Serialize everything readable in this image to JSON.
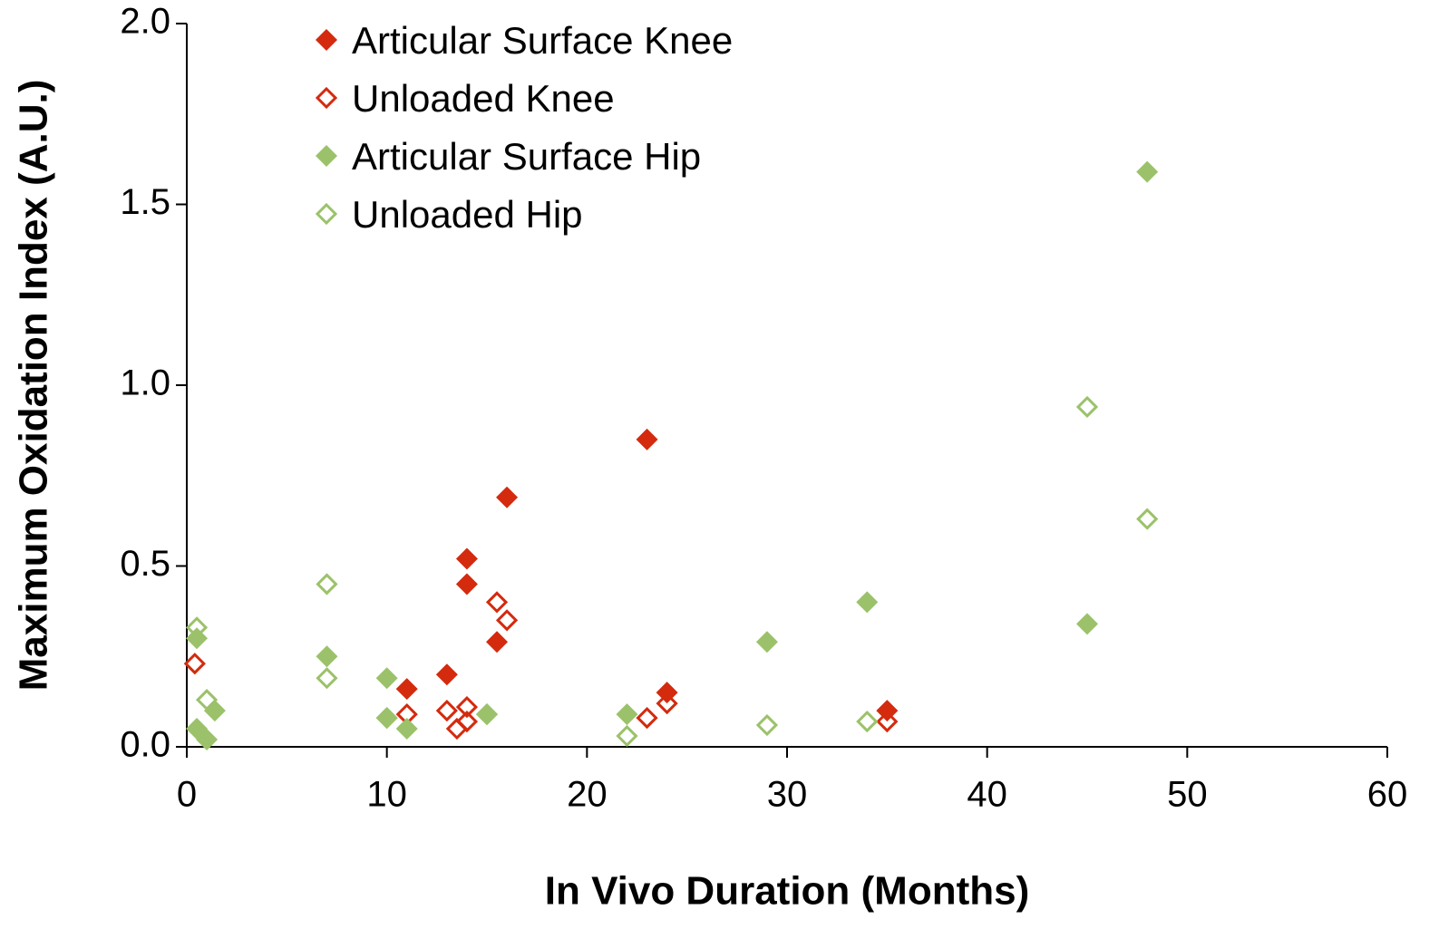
{
  "chart_data": {
    "type": "scatter",
    "xlabel": "In Vivo Duration (Months)",
    "ylabel": "Maximum Oxidation Index (A.U.)",
    "xlim": [
      0,
      60
    ],
    "xticks": [
      0,
      10,
      20,
      30,
      40,
      50,
      60
    ],
    "ylim": [
      0,
      2
    ],
    "yticks": [
      {
        "value": 0,
        "label": "0.0"
      },
      {
        "value": 0.5,
        "label": "0.5"
      },
      {
        "value": 1,
        "label": "1.0"
      },
      {
        "value": 1.5,
        "label": "1.5"
      },
      {
        "value": 2,
        "label": "2.0"
      }
    ],
    "legend": "upper left",
    "series": [
      {
        "name": "Articular Surface Knee",
        "color": "#d42a0e",
        "filled": true,
        "x": [
          11,
          13,
          14,
          14,
          15.5,
          16,
          23,
          24,
          35
        ],
        "values": [
          0.16,
          0.2,
          0.52,
          0.45,
          0.29,
          0.69,
          0.85,
          0.15,
          0.1
        ]
      },
      {
        "name": "Unloaded Knee",
        "color": "#d42a0e",
        "filled": false,
        "x": [
          0.4,
          11,
          13,
          13.5,
          14,
          14,
          15.5,
          16,
          23,
          24,
          35
        ],
        "values": [
          0.23,
          0.09,
          0.1,
          0.05,
          0.11,
          0.07,
          0.4,
          0.35,
          0.08,
          0.12,
          0.07
        ]
      },
      {
        "name": "Articular Surface Hip",
        "color": "#9bc26a",
        "filled": true,
        "x": [
          0.5,
          0.5,
          1,
          1.4,
          7,
          10,
          10,
          11,
          15,
          22,
          29,
          34,
          45,
          48
        ],
        "values": [
          0.3,
          0.05,
          0.02,
          0.1,
          0.25,
          0.19,
          0.08,
          0.05,
          0.09,
          0.09,
          0.29,
          0.4,
          0.34,
          1.59
        ]
      },
      {
        "name": "Unloaded Hip",
        "color": "#9bc26a",
        "filled": false,
        "x": [
          0.5,
          1,
          7,
          7,
          10,
          15,
          22,
          29,
          34,
          45,
          48
        ],
        "values": [
          0.33,
          0.13,
          0.45,
          0.19,
          0.08,
          0.09,
          0.03,
          0.06,
          0.07,
          0.94,
          0.63
        ]
      }
    ]
  }
}
